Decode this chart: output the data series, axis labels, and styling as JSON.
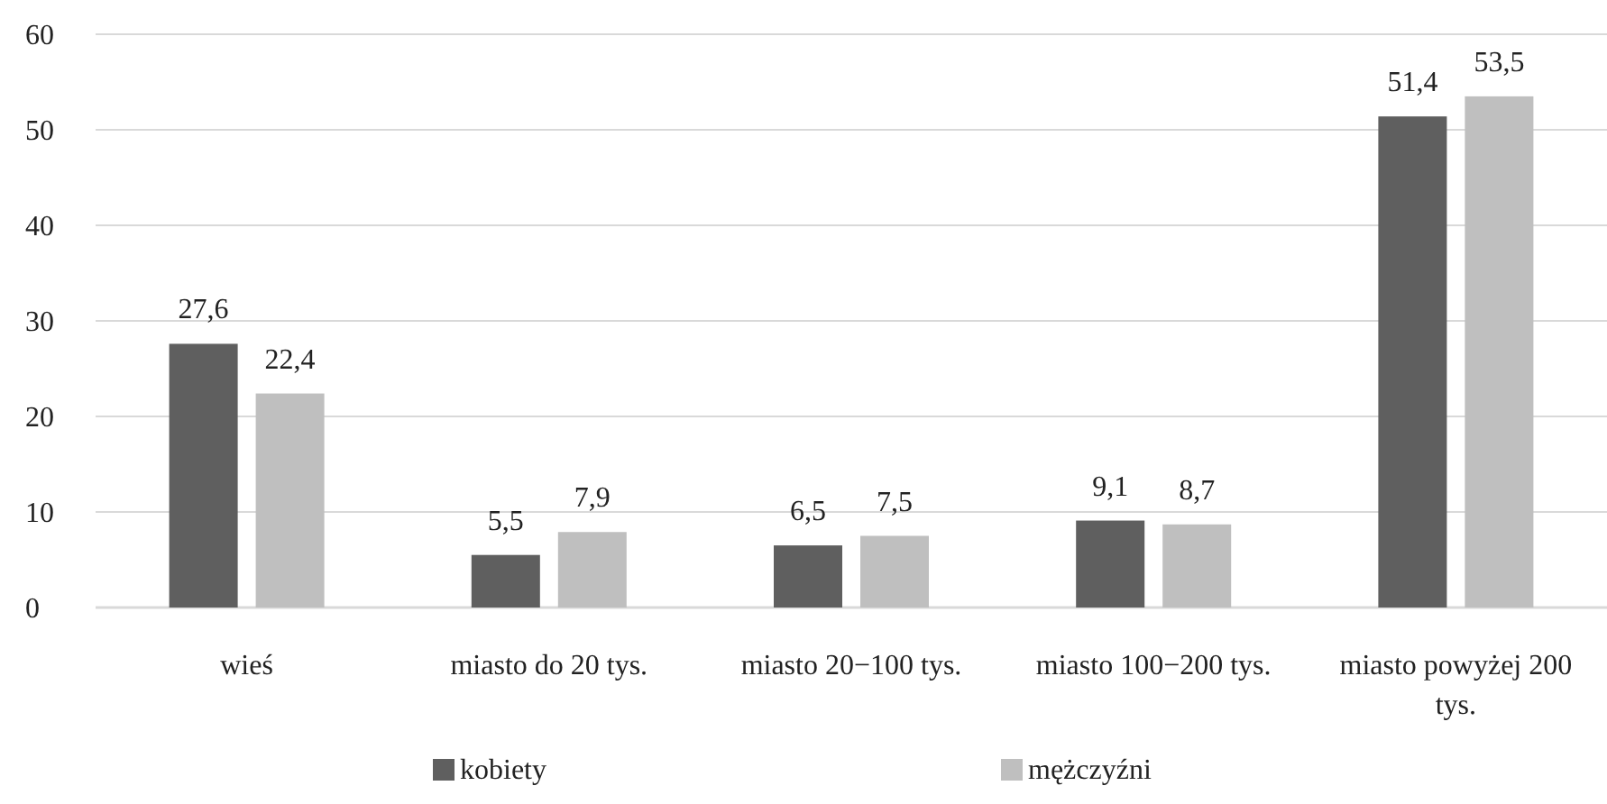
{
  "chart_data": {
    "type": "bar",
    "categories": [
      "wieś",
      "miasto do 20 tys.",
      "miasto 20−100 tys.",
      "miasto 100−200 tys.",
      "miasto powyżej 200 tys."
    ],
    "series": [
      {
        "name": "kobiety",
        "color": "#5f5f5f",
        "values": [
          27.6,
          5.5,
          6.5,
          9.1,
          51.4
        ],
        "value_labels": [
          "27,6",
          "5,5",
          "6,5",
          "9,1",
          "51,4"
        ]
      },
      {
        "name": "mężczyźni",
        "color": "#bfbfbf",
        "values": [
          22.4,
          7.9,
          7.5,
          8.7,
          53.5
        ],
        "value_labels": [
          "22,4",
          "7,9",
          "7,5",
          "8,7",
          "53,5"
        ]
      }
    ],
    "ylim": [
      0,
      60
    ],
    "yticks": [
      0,
      10,
      20,
      30,
      40,
      50,
      60
    ],
    "grid": "y",
    "legend": "bottom"
  }
}
